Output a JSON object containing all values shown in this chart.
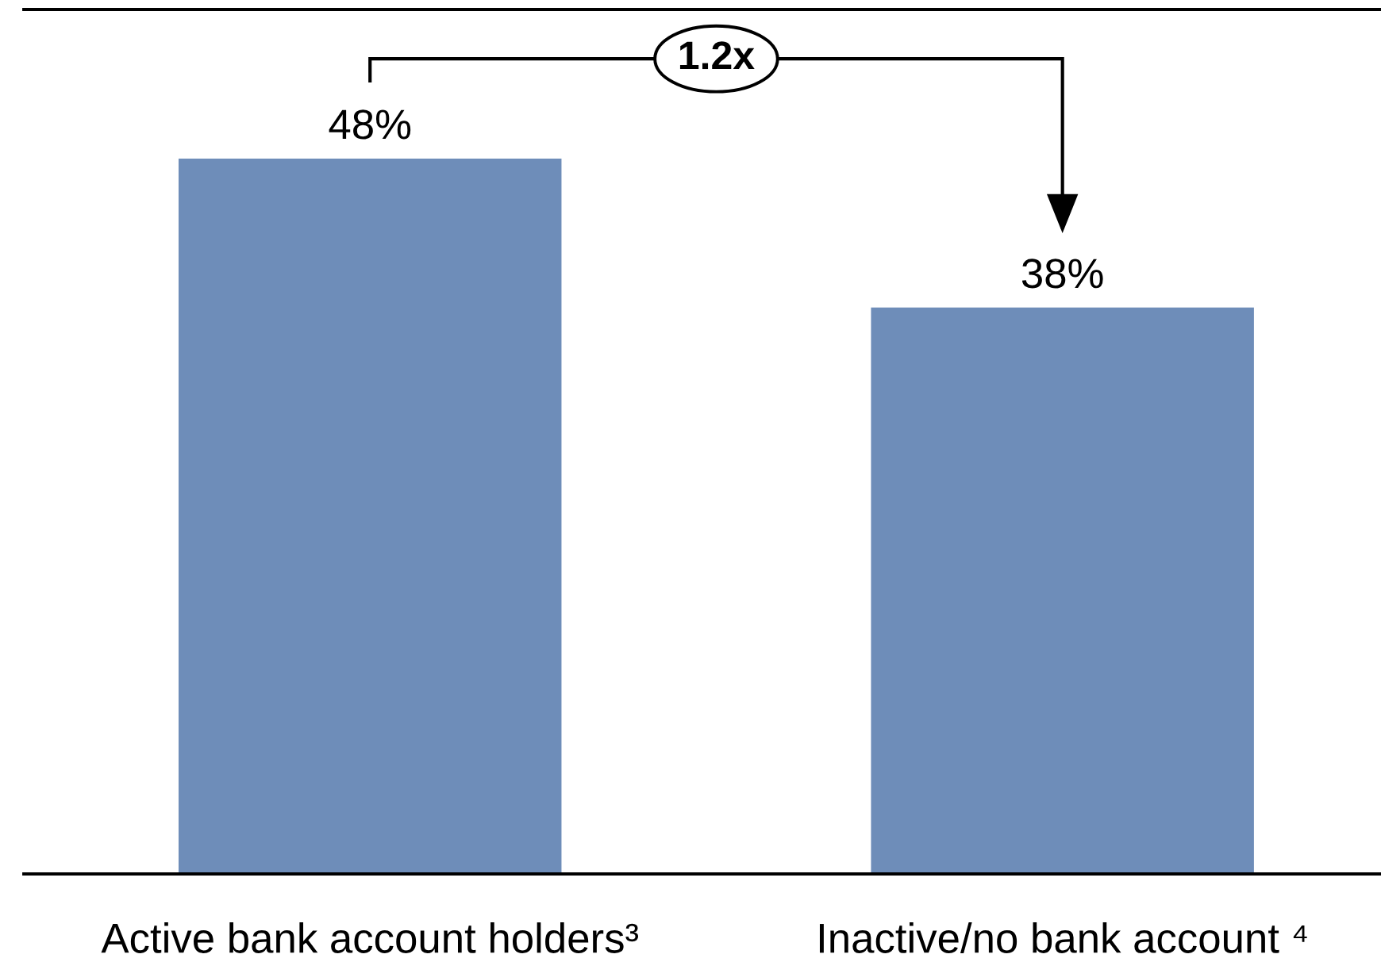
{
  "chart_data": {
    "type": "bar",
    "categories": [
      "Active bank account holders³",
      "Inactive/no bank account ⁴"
    ],
    "values": [
      48,
      38
    ],
    "value_labels": [
      "48%",
      "38%"
    ],
    "color": "#6e8db9",
    "ylim": [
      0,
      58
    ],
    "tick_labels": "x",
    "annotations": [
      "1.2x"
    ]
  }
}
